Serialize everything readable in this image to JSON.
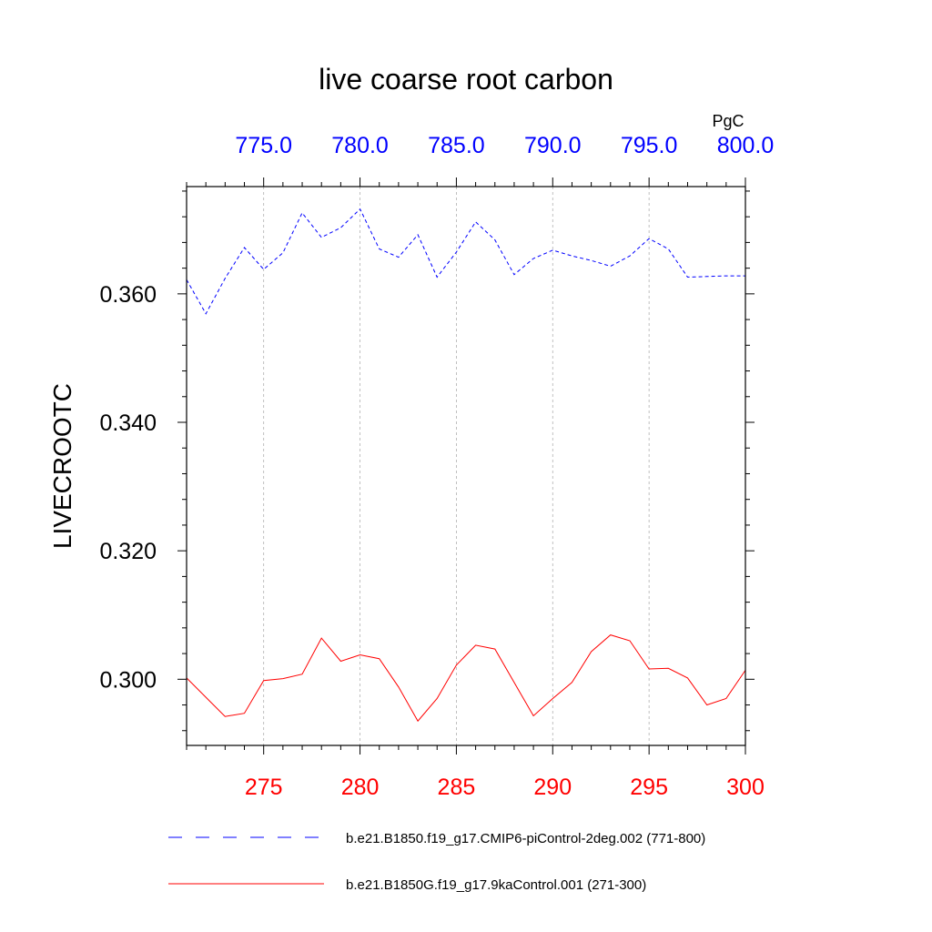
{
  "chart_data": {
    "type": "line",
    "title": "live coarse root carbon",
    "ylabel": "LIVECROOTC",
    "units": "PgC",
    "ylim": [
      0.2897,
      0.3767
    ],
    "y_ticks": [
      "0.300",
      "0.320",
      "0.340",
      "0.360"
    ],
    "x_bottom": {
      "range": [
        271,
        300
      ],
      "tick_labels": [
        "275",
        "280",
        "285",
        "290",
        "295",
        "300"
      ],
      "color": "#ff0000"
    },
    "x_top": {
      "range": [
        771,
        800
      ],
      "tick_labels": [
        "775.0",
        "780.0",
        "785.0",
        "790.0",
        "795.0",
        "800.0"
      ],
      "color": "#0000ff"
    },
    "grid": "vertical dashed at major ticks",
    "legend_placement": "bottom",
    "series": [
      {
        "name": "b.e21.B1850.f19_g17.CMIP6-piControl-2deg.002 (771-800)",
        "axis": "top",
        "color": "#0000ff",
        "style": "dashed",
        "x": [
          771,
          772,
          773,
          774,
          775,
          776,
          777,
          778,
          779,
          780,
          781,
          782,
          783,
          784,
          785,
          786,
          787,
          788,
          789,
          790,
          791,
          792,
          793,
          794,
          795,
          796,
          797,
          798,
          799,
          800
        ],
        "values": [
          0.3622,
          0.3569,
          0.3624,
          0.3672,
          0.3638,
          0.3664,
          0.3726,
          0.3688,
          0.3703,
          0.3732,
          0.367,
          0.3657,
          0.3692,
          0.3626,
          0.3665,
          0.3712,
          0.3684,
          0.363,
          0.3655,
          0.3668,
          0.3659,
          0.3652,
          0.3643,
          0.3659,
          0.3686,
          0.367,
          0.3626,
          0.3627,
          0.3628,
          0.3628
        ]
      },
      {
        "name": "b.e21.B1850G.f19_g17.9kaControl.001 (271-300)",
        "axis": "bottom",
        "color": "#ff0000",
        "style": "solid",
        "x": [
          271,
          272,
          273,
          274,
          275,
          276,
          277,
          278,
          279,
          280,
          281,
          282,
          283,
          284,
          285,
          286,
          287,
          288,
          289,
          290,
          291,
          292,
          293,
          294,
          295,
          296,
          297,
          298,
          299,
          300
        ],
        "values": [
          0.3002,
          0.2972,
          0.2942,
          0.2947,
          0.2998,
          0.3001,
          0.3008,
          0.3064,
          0.3028,
          0.3038,
          0.3032,
          0.2988,
          0.2935,
          0.297,
          0.3022,
          0.3053,
          0.3047,
          0.2995,
          0.2943,
          0.297,
          0.2995,
          0.3043,
          0.3069,
          0.306,
          0.3016,
          0.3017,
          0.3002,
          0.296,
          0.297,
          0.3014
        ]
      }
    ]
  }
}
